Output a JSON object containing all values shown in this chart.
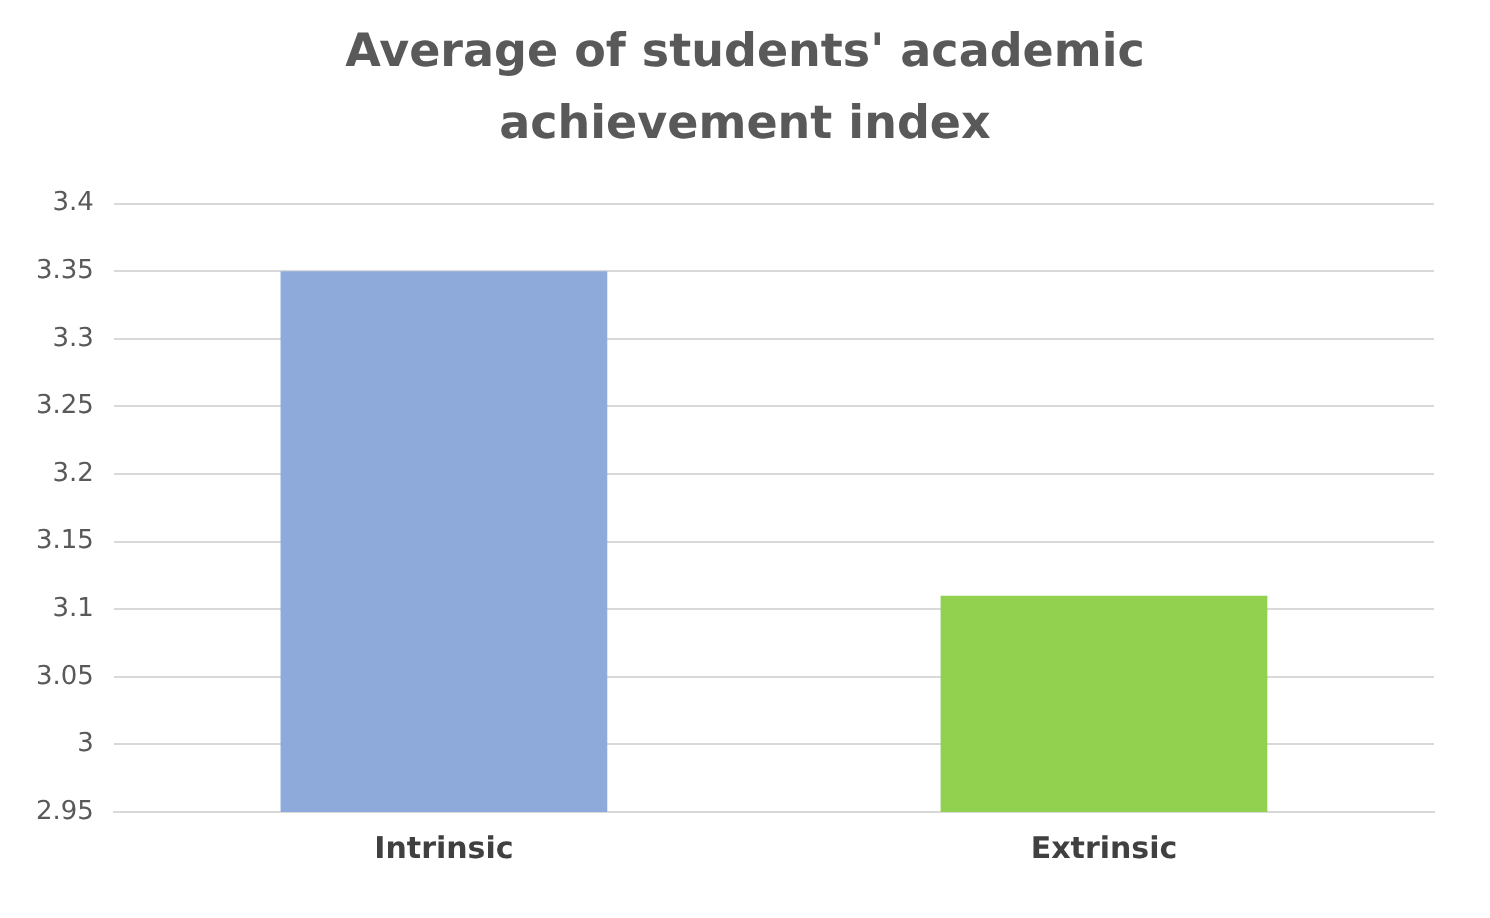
{
  "chart_data": {
    "type": "bar",
    "title": "Average of students' academic achievement index",
    "categories": [
      "Intrinsic",
      "Extrinsic"
    ],
    "colors": [
      "#8eaadb",
      "#92d050"
    ],
    "values": [
      3.35,
      3.11
    ],
    "ylim": [
      2.95,
      3.4
    ],
    "yticks": [
      2.95,
      3,
      3.05,
      3.1,
      3.15,
      3.2,
      3.25,
      3.3,
      3.35,
      3.4
    ],
    "grid": "y"
  }
}
